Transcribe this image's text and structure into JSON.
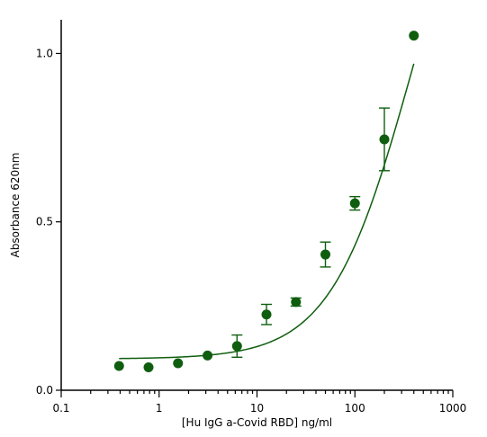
{
  "chart_data": {
    "type": "scatter",
    "title": "",
    "xlabel": "[Hu IgG a-Covid RBD] ng/ml",
    "ylabel": "Absorbance 620nm",
    "xscale": "log",
    "xlim": [
      0.1,
      1000
    ],
    "ylim": [
      0.0,
      1.1
    ],
    "x_ticks": [
      0.1,
      1,
      10,
      100,
      1000
    ],
    "x_tick_labels": [
      "0.1",
      "1",
      "10",
      "100",
      "1000"
    ],
    "y_ticks": [
      0.0,
      0.5,
      1.0
    ],
    "y_tick_labels": [
      "0.0",
      "0.5",
      "1.0"
    ],
    "grid": false,
    "legend": "none",
    "color": "#0f5e0f",
    "series": [
      {
        "x": [
          0.39,
          0.78,
          1.56,
          3.125,
          6.25,
          12.5,
          25,
          50,
          100,
          200,
          400
        ],
        "y": [
          0.072,
          0.068,
          0.08,
          0.103,
          0.131,
          0.225,
          0.262,
          0.403,
          0.555,
          0.745,
          1.053
        ],
        "err": [
          0.0,
          0.0,
          0.0,
          0.0,
          0.033,
          0.03,
          0.012,
          0.037,
          0.02,
          0.093,
          0.0
        ]
      }
    ],
    "fit_curve": {
      "type": "4PL",
      "bottom": 0.093,
      "top": 1.8,
      "ec50": 380,
      "hill": 1.05,
      "x_range": [
        0.39,
        400
      ]
    }
  }
}
